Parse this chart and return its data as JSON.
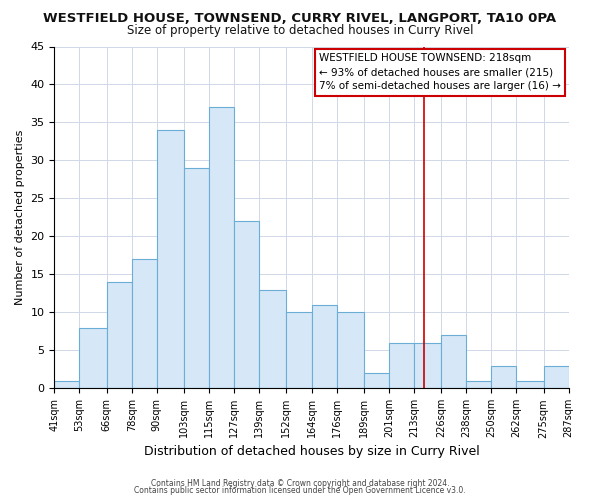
{
  "title": "WESTFIELD HOUSE, TOWNSEND, CURRY RIVEL, LANGPORT, TA10 0PA",
  "subtitle": "Size of property relative to detached houses in Curry Rivel",
  "xlabel": "Distribution of detached houses by size in Curry Rivel",
  "ylabel": "Number of detached properties",
  "bar_values": [
    1,
    8,
    14,
    17,
    34,
    29,
    37,
    22,
    13,
    10,
    11,
    10,
    2,
    6,
    6,
    7,
    1,
    3,
    1,
    3
  ],
  "bin_edges": [
    41,
    53,
    66,
    78,
    90,
    103,
    115,
    127,
    139,
    152,
    164,
    176,
    189,
    201,
    213,
    226,
    238,
    250,
    262,
    275,
    287
  ],
  "tick_labels": [
    "41sqm",
    "53sqm",
    "66sqm",
    "78sqm",
    "90sqm",
    "103sqm",
    "115sqm",
    "127sqm",
    "139sqm",
    "152sqm",
    "164sqm",
    "176sqm",
    "189sqm",
    "201sqm",
    "213sqm",
    "226sqm",
    "238sqm",
    "250sqm",
    "262sqm",
    "275sqm",
    "287sqm"
  ],
  "bar_color": "#d6e8f7",
  "bar_edge_color": "#6aaed6",
  "vline_x": 218,
  "vline_color": "#cc0000",
  "ylim": [
    0,
    45
  ],
  "yticks": [
    0,
    5,
    10,
    15,
    20,
    25,
    30,
    35,
    40,
    45
  ],
  "annotation_title": "WESTFIELD HOUSE TOWNSEND: 218sqm",
  "annotation_line1": "← 93% of detached houses are smaller (215)",
  "annotation_line2": "7% of semi-detached houses are larger (16) →",
  "annotation_box_color": "#ffffff",
  "annotation_border_color": "#cc0000",
  "footer1": "Contains HM Land Registry data © Crown copyright and database right 2024.",
  "footer2": "Contains public sector information licensed under the Open Government Licence v3.0.",
  "background_color": "#ffffff",
  "grid_color": "#d0d8e8"
}
